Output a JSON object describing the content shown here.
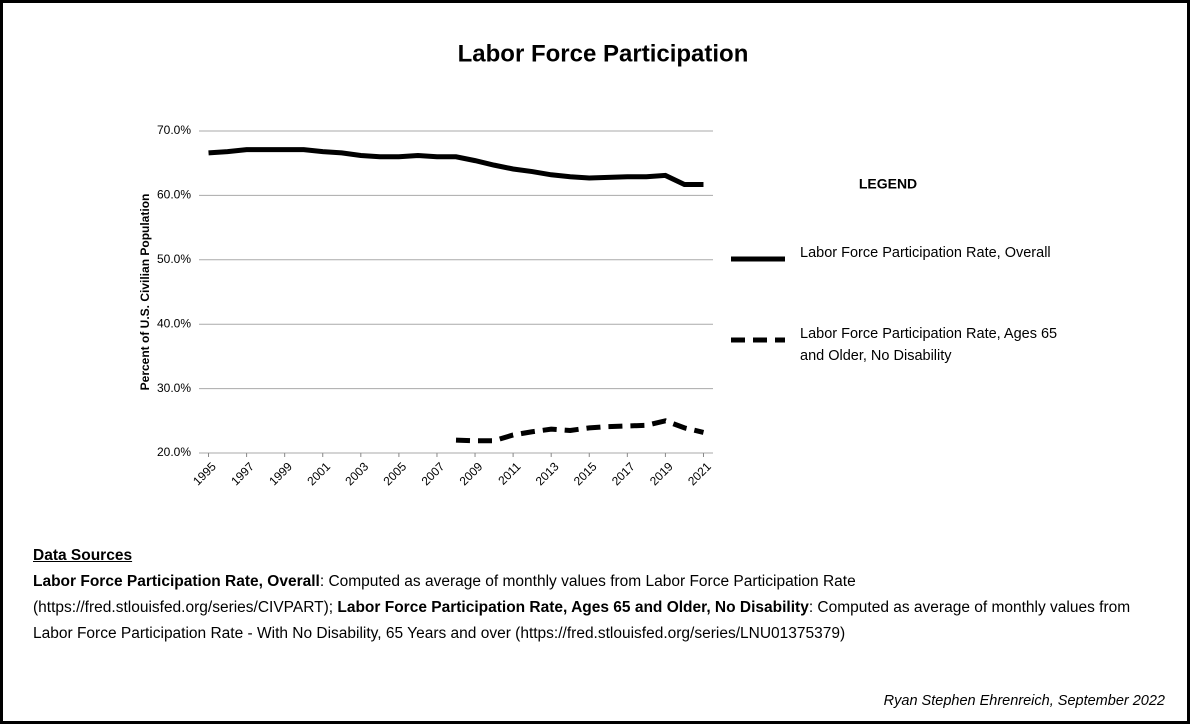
{
  "chart_data": {
    "type": "line",
    "title": "Labor Force Participation",
    "y_label": "Percent of U.S. Civilian Population",
    "x": [
      1995,
      1996,
      1997,
      1998,
      1999,
      2000,
      2001,
      2002,
      2003,
      2004,
      2005,
      2006,
      2007,
      2008,
      2009,
      2010,
      2011,
      2012,
      2013,
      2014,
      2015,
      2016,
      2017,
      2018,
      2019,
      2020,
      2021
    ],
    "xlim": [
      1994.5,
      2021.5
    ],
    "xticks": [
      1995,
      1997,
      1999,
      2001,
      2003,
      2005,
      2007,
      2009,
      2011,
      2013,
      2015,
      2017,
      2019,
      2021
    ],
    "ylim": [
      20,
      70
    ],
    "yticks": [
      {
        "value": 20,
        "label": "20.0%"
      },
      {
        "value": 30,
        "label": "30.0%"
      },
      {
        "value": 40,
        "label": "40.0%"
      },
      {
        "value": 50,
        "label": "50.0%"
      },
      {
        "value": 60,
        "label": "60.0%"
      },
      {
        "value": 70,
        "label": "70.0%"
      }
    ],
    "grid": true,
    "legend_title": "LEGEND",
    "legend_position": "right",
    "series": [
      {
        "name": "Labor Force Participation Rate, Overall",
        "color": "#000000",
        "line_style": "solid",
        "values": [
          66.6,
          66.8,
          67.1,
          67.1,
          67.1,
          67.1,
          66.8,
          66.6,
          66.2,
          66.0,
          66.0,
          66.2,
          66.0,
          66.0,
          65.4,
          64.7,
          64.1,
          63.7,
          63.2,
          62.9,
          62.7,
          62.8,
          62.9,
          62.9,
          63.1,
          61.7,
          61.7
        ]
      },
      {
        "name": "Labor Force Participation Rate, Ages 65 and Older, No Disability",
        "color": "#000000",
        "line_style": "dashed",
        "values": [
          null,
          null,
          null,
          null,
          null,
          null,
          null,
          null,
          null,
          null,
          null,
          null,
          null,
          22.0,
          21.9,
          21.9,
          22.8,
          23.3,
          23.7,
          23.5,
          23.9,
          24.1,
          24.2,
          24.3,
          25.0,
          23.9,
          23.2
        ]
      }
    ]
  },
  "sources": {
    "heading": "Data Sources",
    "items": [
      {
        "description": ": Computed as average of monthly values from Labor Force Participation Rate (https://fred.stlouisfed.org/series/CIVPART); "
      },
      {
        "description": ": Computed as average of monthly values from Labor Force Participation Rate - With No Disability, 65 Years and over (https://fred.stlouisfed.org/series/LNU01375379)"
      }
    ]
  },
  "credit": "Ryan Stephen Ehrenreich, September 2022"
}
